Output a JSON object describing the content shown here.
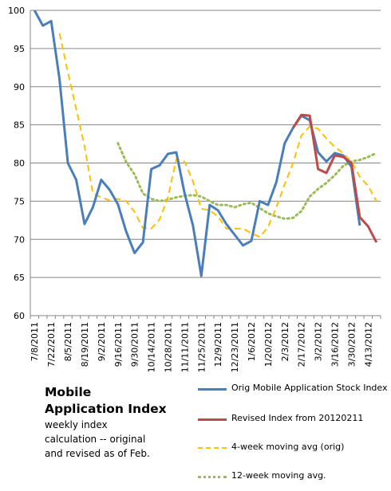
{
  "annotation": {
    "title_line1": "Mobile",
    "title_line2": "Application Index",
    "desc_line1": "weekly index",
    "desc_line2": "calculation -- original",
    "desc_line3": "and revised  as of Feb."
  },
  "chart_data": {
    "type": "line",
    "title": "",
    "xlabel": "",
    "ylabel": "",
    "ylim": [
      60,
      100
    ],
    "yticks": [
      60,
      65,
      70,
      75,
      80,
      85,
      90,
      95,
      100
    ],
    "grid": "horizontal",
    "legend_position": "bottom-right",
    "x_labels": [
      "7/8/2011",
      "7/22/2011",
      "8/5/2011",
      "8/19/2011",
      "9/2/2011",
      "9/16/2011",
      "9/30/2011",
      "10/14/2011",
      "10/28/2011",
      "11/11/2011",
      "11/25/2011",
      "12/9/2011",
      "12/23/2011",
      "1/6/2012",
      "1/20/2012",
      "2/3/2012",
      "2/17/2012",
      "3/2/2012",
      "3/16/2012",
      "3/30/2012",
      "4/13/2012"
    ],
    "weeks": [
      "7/8/2011",
      "7/15/2011",
      "7/22/2011",
      "7/29/2011",
      "8/5/2011",
      "8/12/2011",
      "8/19/2011",
      "8/26/2011",
      "9/2/2011",
      "9/9/2011",
      "9/16/2011",
      "9/23/2011",
      "9/30/2011",
      "10/7/2011",
      "10/14/2011",
      "10/21/2011",
      "10/28/2011",
      "11/4/2011",
      "11/11/2011",
      "11/18/2011",
      "11/25/2011",
      "12/2/2011",
      "12/9/2011",
      "12/16/2011",
      "12/23/2011",
      "12/30/2011",
      "1/6/2012",
      "1/13/2012",
      "1/20/2012",
      "1/27/2012",
      "2/3/2012",
      "2/10/2012",
      "2/17/2012",
      "2/24/2012",
      "3/2/2012",
      "3/9/2012",
      "3/16/2012",
      "3/23/2012",
      "3/30/2012",
      "4/6/2012",
      "4/13/2012",
      "4/20/2012"
    ],
    "series": [
      {
        "name": "Orig Mobile Application Stock Index",
        "color": "#4a7ebb",
        "style": "solid",
        "values": [
          100.0,
          98.0,
          98.6,
          91.0,
          80.0,
          77.8,
          72.0,
          74.2,
          77.8,
          76.5,
          74.6,
          71.0,
          68.2,
          69.6,
          79.2,
          79.7,
          81.2,
          81.4,
          76.0,
          71.8,
          65.2,
          74.5,
          73.8,
          72.0,
          70.6,
          69.2,
          69.8,
          75.0,
          74.5,
          77.5,
          82.6,
          84.6,
          86.2,
          85.6,
          81.4,
          80.2,
          81.3,
          81.0,
          79.5,
          71.8,
          null,
          null
        ]
      },
      {
        "name": "Revised Index from 20120211",
        "color": "#be4b48",
        "style": "solid",
        "values": [
          null,
          null,
          null,
          null,
          null,
          null,
          null,
          null,
          null,
          null,
          null,
          null,
          null,
          null,
          null,
          null,
          null,
          null,
          null,
          null,
          null,
          null,
          null,
          null,
          null,
          null,
          null,
          null,
          null,
          null,
          null,
          84.6,
          86.3,
          86.2,
          79.2,
          78.7,
          81.0,
          80.8,
          80.0,
          72.9,
          71.7,
          69.6
        ]
      },
      {
        "name": "4-week moving avg (orig)",
        "color": "#ffc000",
        "style": "dashed",
        "values": [
          null,
          null,
          null,
          97.0,
          91.9,
          87.1,
          82.2,
          76.0,
          75.5,
          75.1,
          75.3,
          75.0,
          73.6,
          71.5,
          71.4,
          72.6,
          75.5,
          80.5,
          80.2,
          77.6,
          74.0,
          73.8,
          73.0,
          71.4,
          71.4,
          71.4,
          70.8,
          70.3,
          71.6,
          74.2,
          77.2,
          80.0,
          83.6,
          84.8,
          84.5,
          83.2,
          82.1,
          81.3,
          80.2,
          78.2,
          77.0,
          75.0
        ]
      },
      {
        "name": "12-week moving avg.",
        "color": "#9bbb59",
        "style": "dotted",
        "values": [
          null,
          null,
          null,
          null,
          null,
          null,
          null,
          null,
          null,
          null,
          82.6,
          80.1,
          78.5,
          76.0,
          75.3,
          75.0,
          75.2,
          75.5,
          75.7,
          75.8,
          75.6,
          75.0,
          74.5,
          74.5,
          74.2,
          74.6,
          74.8,
          74.1,
          73.4,
          73.0,
          72.7,
          72.8,
          73.7,
          75.6,
          76.6,
          77.4,
          78.4,
          79.6,
          80.2,
          80.4,
          80.8,
          81.3
        ]
      }
    ]
  }
}
